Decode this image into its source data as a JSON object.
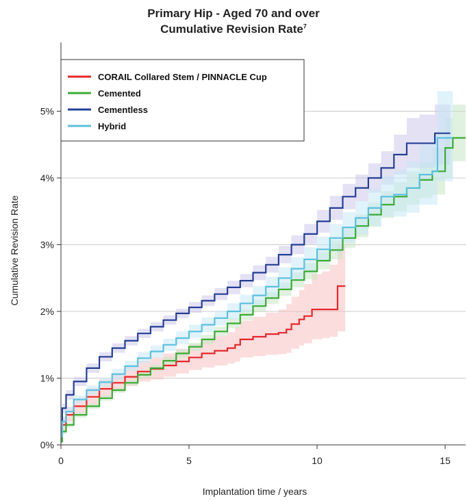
{
  "title": "Primary Hip - Aged 70 and over",
  "subtitle_text": "Cumulative Revision Rate",
  "subtitle_sup": "7",
  "chart_data": {
    "type": "line",
    "xlabel": "Implantation time / years",
    "ylabel": "Cumulative Revision Rate",
    "xlim": [
      0,
      15.8
    ],
    "ylim": [
      0,
      5.1
    ],
    "x_ticks": [
      0,
      5,
      10,
      15
    ],
    "y_ticks": [
      0,
      1,
      2,
      3,
      4,
      5
    ],
    "y_tick_labels": [
      "0%",
      "1%",
      "2%",
      "3%",
      "4%",
      "5%"
    ],
    "grid": "horizontal",
    "legend_position": "top-left",
    "series": [
      {
        "name": "CORAIL Collared Stem / PINNACLE Cup",
        "color": "#e8262b",
        "band_color": "#f7c1c1",
        "x": [
          0,
          0.05,
          0.2,
          0.5,
          1,
          1.5,
          2,
          2.5,
          3,
          3.5,
          4,
          4.5,
          5,
          5.5,
          6,
          6.5,
          6.8,
          7,
          7.5,
          8,
          8.5,
          8.8,
          9,
          9.3,
          9.5,
          9.8,
          10.2,
          10.5,
          10.8,
          11.1
        ],
        "y": [
          0.1,
          0.3,
          0.45,
          0.58,
          0.72,
          0.84,
          0.93,
          1.02,
          1.1,
          1.14,
          1.19,
          1.25,
          1.31,
          1.37,
          1.41,
          1.45,
          1.5,
          1.58,
          1.62,
          1.66,
          1.68,
          1.73,
          1.81,
          1.88,
          1.93,
          2.03,
          2.03,
          2.03,
          2.38,
          2.38
        ],
        "lower": [
          0.05,
          0.2,
          0.35,
          0.47,
          0.6,
          0.71,
          0.8,
          0.88,
          0.95,
          0.98,
          1.02,
          1.07,
          1.12,
          1.16,
          1.19,
          1.22,
          1.25,
          1.31,
          1.33,
          1.35,
          1.36,
          1.38,
          1.44,
          1.49,
          1.52,
          1.58,
          1.6,
          1.62,
          1.7,
          1.7
        ],
        "upper": [
          0.2,
          0.42,
          0.57,
          0.7,
          0.85,
          0.98,
          1.07,
          1.17,
          1.26,
          1.31,
          1.37,
          1.44,
          1.51,
          1.58,
          1.63,
          1.69,
          1.76,
          1.86,
          1.92,
          1.98,
          2.03,
          2.11,
          2.22,
          2.32,
          2.41,
          2.56,
          2.6,
          2.7,
          3.0,
          3.0
        ]
      },
      {
        "name": "Cemented",
        "color": "#3aaa35",
        "band_color": "#c8e6c4",
        "x": [
          0,
          0.05,
          0.2,
          0.5,
          1,
          1.5,
          2,
          2.5,
          3,
          3.5,
          4,
          4.5,
          5,
          5.5,
          6,
          6.5,
          7,
          7.5,
          8,
          8.5,
          9,
          9.5,
          10,
          10.5,
          11,
          11.5,
          12,
          12.5,
          13,
          13.5,
          14,
          14.5,
          15,
          15.3,
          15.8
        ],
        "y": [
          0.05,
          0.2,
          0.3,
          0.45,
          0.58,
          0.7,
          0.82,
          0.93,
          1.05,
          1.15,
          1.26,
          1.37,
          1.47,
          1.58,
          1.7,
          1.82,
          1.95,
          2.08,
          2.2,
          2.33,
          2.47,
          2.6,
          2.76,
          2.92,
          3.1,
          3.28,
          3.45,
          3.6,
          3.72,
          3.85,
          3.97,
          4.1,
          4.45,
          4.6,
          4.6
        ],
        "lower": [
          0.02,
          0.16,
          0.26,
          0.41,
          0.54,
          0.66,
          0.78,
          0.89,
          1.0,
          1.1,
          1.2,
          1.31,
          1.41,
          1.51,
          1.63,
          1.75,
          1.87,
          1.99,
          2.11,
          2.23,
          2.36,
          2.48,
          2.63,
          2.78,
          2.95,
          3.11,
          3.27,
          3.4,
          3.5,
          3.6,
          3.7,
          3.75,
          4.0,
          4.25,
          4.25
        ],
        "upper": [
          0.08,
          0.24,
          0.34,
          0.49,
          0.62,
          0.74,
          0.86,
          0.97,
          1.1,
          1.2,
          1.32,
          1.43,
          1.53,
          1.65,
          1.77,
          1.9,
          2.03,
          2.17,
          2.29,
          2.43,
          2.58,
          2.72,
          2.89,
          3.06,
          3.25,
          3.45,
          3.63,
          3.8,
          3.94,
          4.1,
          4.24,
          4.45,
          4.9,
          5.1,
          5.1
        ]
      },
      {
        "name": "Cementless",
        "color": "#233f94",
        "band_color": "#cdc9eb",
        "x": [
          0,
          0.05,
          0.2,
          0.5,
          1,
          1.5,
          2,
          2.5,
          3,
          3.5,
          4,
          4.5,
          5,
          5.5,
          6,
          6.5,
          7,
          7.5,
          8,
          8.5,
          9,
          9.5,
          10,
          10.5,
          11,
          11.5,
          12,
          12.5,
          13,
          13.5,
          14,
          14.6,
          15.2
        ],
        "y": [
          0.2,
          0.55,
          0.75,
          0.95,
          1.15,
          1.32,
          1.45,
          1.56,
          1.67,
          1.77,
          1.87,
          1.97,
          2.06,
          2.16,
          2.26,
          2.36,
          2.46,
          2.58,
          2.7,
          2.85,
          3.0,
          3.16,
          3.35,
          3.55,
          3.72,
          3.85,
          4.0,
          4.15,
          4.35,
          4.52,
          4.52,
          4.67,
          4.67
        ],
        "lower": [
          0.14,
          0.48,
          0.68,
          0.88,
          1.08,
          1.25,
          1.38,
          1.49,
          1.6,
          1.7,
          1.8,
          1.9,
          1.98,
          2.08,
          2.17,
          2.26,
          2.36,
          2.47,
          2.58,
          2.72,
          2.86,
          3.01,
          3.18,
          3.37,
          3.53,
          3.65,
          3.78,
          3.9,
          4.05,
          4.15,
          4.15,
          4.2,
          4.2
        ],
        "upper": [
          0.26,
          0.62,
          0.82,
          1.02,
          1.22,
          1.39,
          1.52,
          1.63,
          1.74,
          1.84,
          1.94,
          2.04,
          2.14,
          2.24,
          2.35,
          2.46,
          2.56,
          2.69,
          2.82,
          2.98,
          3.14,
          3.31,
          3.52,
          3.73,
          3.91,
          4.05,
          4.22,
          4.4,
          4.65,
          4.9,
          4.95,
          5.1,
          5.1
        ]
      },
      {
        "name": "Hybrid",
        "color": "#5bc0de",
        "band_color": "#c6e8f5",
        "x": [
          0,
          0.05,
          0.2,
          0.5,
          1,
          1.5,
          2,
          2.5,
          3,
          3.5,
          4,
          4.5,
          5,
          5.5,
          6,
          6.5,
          7,
          7.5,
          8,
          8.5,
          9,
          9.5,
          10,
          10.5,
          11,
          11.5,
          12,
          12.5,
          13,
          13.5,
          14,
          14.5,
          14.7,
          15.3
        ],
        "y": [
          0.12,
          0.35,
          0.5,
          0.68,
          0.82,
          0.94,
          1.06,
          1.18,
          1.3,
          1.4,
          1.5,
          1.6,
          1.7,
          1.8,
          1.9,
          2.0,
          2.12,
          2.24,
          2.37,
          2.5,
          2.64,
          2.78,
          2.93,
          3.1,
          3.26,
          3.4,
          3.55,
          3.72,
          3.75,
          3.85,
          4.05,
          4.1,
          4.6,
          4.6
        ],
        "lower": [
          0.07,
          0.29,
          0.44,
          0.62,
          0.75,
          0.87,
          0.98,
          1.1,
          1.22,
          1.31,
          1.41,
          1.51,
          1.6,
          1.69,
          1.79,
          1.88,
          1.99,
          2.1,
          2.22,
          2.34,
          2.47,
          2.6,
          2.74,
          2.89,
          3.03,
          3.15,
          3.28,
          3.42,
          3.42,
          3.48,
          3.6,
          3.6,
          3.95,
          3.95
        ],
        "upper": [
          0.17,
          0.41,
          0.56,
          0.74,
          0.89,
          1.01,
          1.14,
          1.26,
          1.39,
          1.49,
          1.59,
          1.7,
          1.8,
          1.91,
          2.01,
          2.12,
          2.25,
          2.38,
          2.52,
          2.66,
          2.81,
          2.96,
          3.12,
          3.31,
          3.49,
          3.65,
          3.84,
          4.03,
          4.12,
          4.25,
          4.5,
          4.65,
          5.3,
          5.7
        ]
      }
    ]
  }
}
